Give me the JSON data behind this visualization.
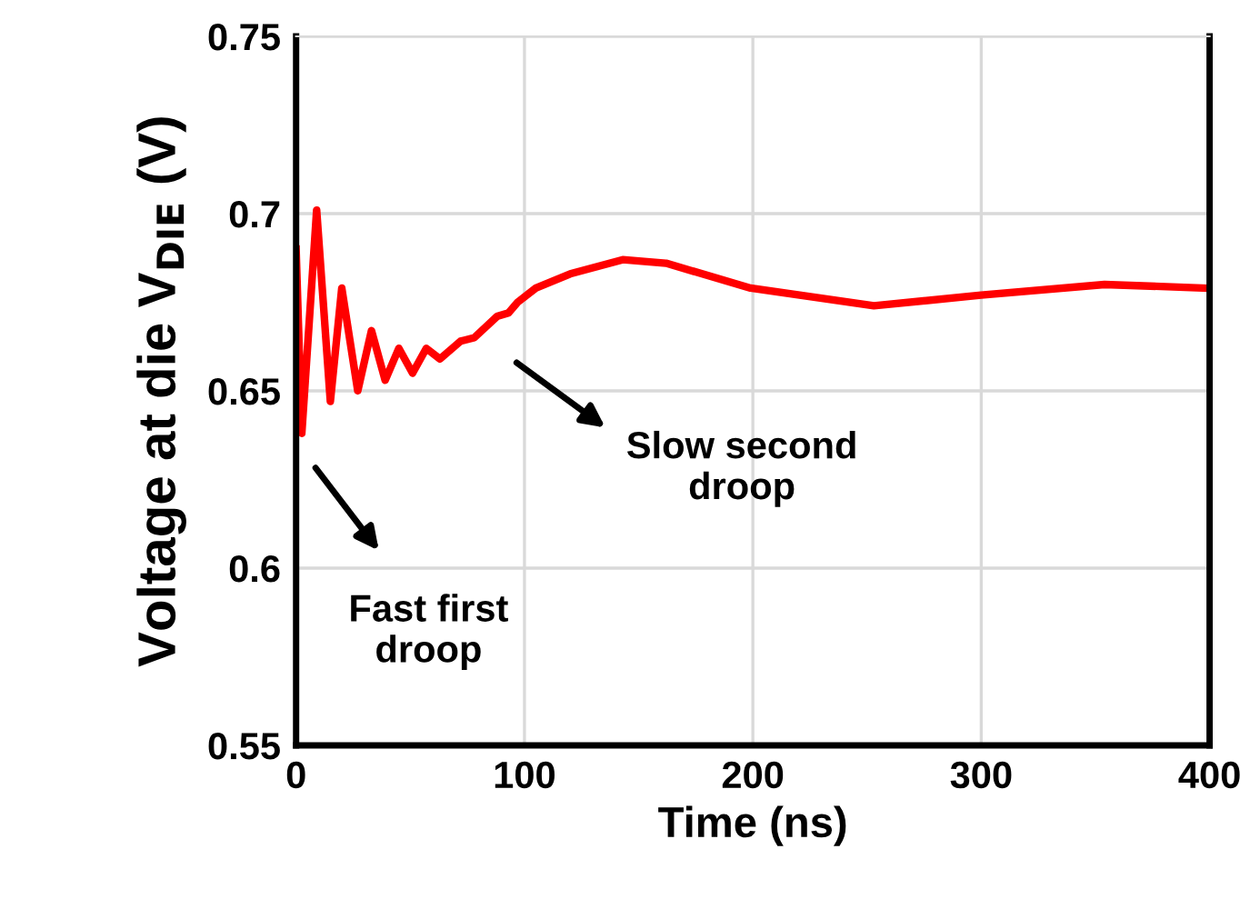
{
  "chart_data": {
    "type": "line",
    "xlabel": "Time (ns)",
    "ylabel": "Voltage at die V$_{DIE}$ (V)",
    "series": [
      {
        "color": "#ff0000",
        "x": [
          0,
          2.5,
          9,
          15,
          20,
          27,
          33,
          39,
          45,
          51,
          57,
          63,
          72,
          78,
          88,
          93,
          97,
          105,
          120,
          143,
          162,
          199,
          253,
          300,
          354,
          398
        ],
        "values": [
          0.69,
          0.638,
          0.701,
          0.647,
          0.679,
          0.65,
          0.667,
          0.653,
          0.662,
          0.655,
          0.662,
          0.659,
          0.664,
          0.665,
          0.671,
          0.672,
          0.675,
          0.679,
          0.683,
          0.687,
          0.686,
          0.679,
          0.674,
          0.677,
          0.68,
          0.679
        ]
      }
    ],
    "xlim": [
      0,
      400
    ],
    "ylim": [
      0.55,
      0.75
    ],
    "xticks": [
      0,
      100,
      200,
      300,
      400
    ],
    "yticks": [
      0.55,
      0.6,
      0.65,
      0.7,
      0.75
    ],
    "grid": true,
    "marker": "none",
    "line_style": "solid",
    "annotations": [
      "Fast first\ndroop",
      "Slow second\ndroop"
    ]
  }
}
